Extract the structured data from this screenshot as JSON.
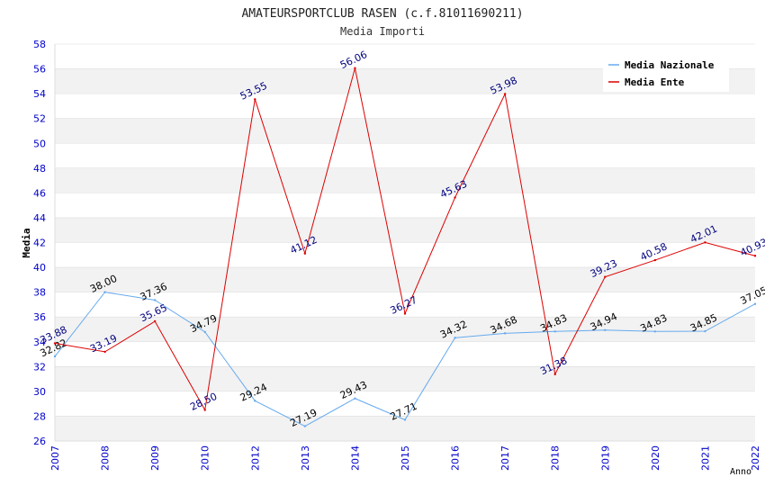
{
  "chart_data": {
    "type": "line",
    "title": "AMATEURSPORTCLUB RASEN (c.f.81011690211)",
    "subtitle": "Media Importi",
    "xlabel": "Anno",
    "ylabel": "Media",
    "ylim": [
      26,
      58
    ],
    "ytick_step": 2,
    "grid": true,
    "legend_position": "top-right",
    "categories": [
      "2007",
      "2008",
      "2009",
      "2010",
      "2012",
      "2013",
      "2014",
      "2015",
      "2016",
      "2017",
      "2018",
      "2019",
      "2020",
      "2021",
      "2022"
    ],
    "series": [
      {
        "name": "Media Nazionale",
        "color": "#66aaee",
        "label_color": "#000000",
        "values": [
          32.82,
          38.0,
          37.36,
          34.79,
          29.24,
          27.19,
          29.43,
          27.71,
          34.32,
          34.68,
          34.83,
          34.94,
          34.83,
          34.85,
          37.05
        ],
        "labels": [
          "32.82",
          "38.00",
          "37.36",
          "34.79",
          "29.24",
          "27.19",
          "29.43",
          "27.71",
          "34.32",
          "34.68",
          "34.83",
          "34.94",
          "34.83",
          "34.85",
          "37.05"
        ]
      },
      {
        "name": "Media Ente",
        "color": "#dd0000",
        "label_color": "#000080",
        "values": [
          33.88,
          33.19,
          35.65,
          28.5,
          53.55,
          41.12,
          56.06,
          36.27,
          45.63,
          53.98,
          31.38,
          39.23,
          40.58,
          42.01,
          40.93
        ],
        "labels": [
          "33.88",
          "33.19",
          "35.65",
          "28.50",
          "53.55",
          "41.12",
          "56.06",
          "36.27",
          "45.63",
          "53.98",
          "31.38",
          "39.23",
          "40.58",
          "42.01",
          "40.93"
        ]
      }
    ],
    "colors": {
      "axis_text": "#0000cc",
      "grid_band": "#f2f2f2",
      "grid_line": "#ffffff",
      "frame": "#dddddd"
    }
  }
}
